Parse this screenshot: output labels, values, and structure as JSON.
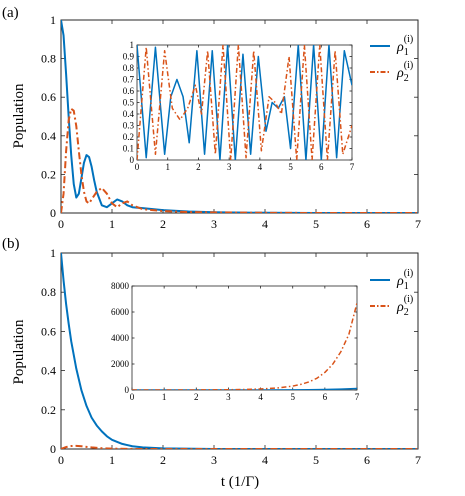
{
  "panel_labels": [
    "(a)",
    "(b)"
  ],
  "x_axis_label": "t (1/Γ)",
  "y_axis_label": "Population",
  "legend": {
    "entries": [
      {
        "symbol": "ρ",
        "sub": "1",
        "sup": "(i)",
        "color": "#0072BD",
        "style": "solid"
      },
      {
        "symbol": "ρ",
        "sub": "2",
        "sup": "(i)",
        "color": "#D95319",
        "style": "dashdot"
      }
    ]
  },
  "chart_data": [
    {
      "id": "a-main",
      "type": "line",
      "xlim": [
        0,
        7
      ],
      "ylim": [
        0,
        1
      ],
      "xticks": [
        0,
        1,
        2,
        3,
        4,
        5,
        6,
        7
      ],
      "yticks": [
        0,
        0.2,
        0.4,
        0.6,
        0.8,
        1
      ],
      "ytick_labels": [
        "0",
        "0.2",
        "0.4",
        "0.6",
        "0.8",
        "1"
      ],
      "xlabel": "",
      "ylabel": "Population",
      "series": [
        {
          "name": "ρ1(i)",
          "color": "#0072BD",
          "style": "solid",
          "x": [
            0,
            0.05,
            0.1,
            0.15,
            0.2,
            0.25,
            0.3,
            0.35,
            0.4,
            0.45,
            0.5,
            0.55,
            0.6,
            0.65,
            0.7,
            0.8,
            0.9,
            1.0,
            1.1,
            1.2,
            1.3,
            1.4,
            1.6,
            1.8,
            2.0,
            2.5,
            3.0,
            4.0,
            5.0,
            6.0,
            7.0
          ],
          "y": [
            1.0,
            0.92,
            0.72,
            0.5,
            0.3,
            0.15,
            0.08,
            0.1,
            0.18,
            0.26,
            0.3,
            0.29,
            0.24,
            0.17,
            0.11,
            0.04,
            0.03,
            0.05,
            0.07,
            0.06,
            0.04,
            0.03,
            0.025,
            0.02,
            0.015,
            0.008,
            0.004,
            0.001,
            0.0,
            0.0,
            0.0
          ]
        },
        {
          "name": "ρ2(i)",
          "color": "#D95319",
          "style": "dashdot",
          "x": [
            0,
            0.05,
            0.1,
            0.15,
            0.2,
            0.25,
            0.3,
            0.35,
            0.4,
            0.45,
            0.5,
            0.55,
            0.6,
            0.7,
            0.8,
            0.9,
            1.0,
            1.1,
            1.2,
            1.3,
            1.4,
            1.6,
            1.8,
            2.0,
            2.5,
            3.0,
            4.0,
            5.0,
            6.0,
            7.0
          ],
          "y": [
            0.0,
            0.1,
            0.32,
            0.48,
            0.54,
            0.53,
            0.45,
            0.32,
            0.2,
            0.11,
            0.06,
            0.05,
            0.07,
            0.11,
            0.13,
            0.1,
            0.05,
            0.03,
            0.05,
            0.06,
            0.04,
            0.02,
            0.015,
            0.01,
            0.005,
            0.003,
            0.001,
            0.0,
            0.0,
            0.0
          ]
        }
      ]
    },
    {
      "id": "a-inset",
      "type": "line",
      "xlim": [
        0,
        7
      ],
      "ylim": [
        0,
        1
      ],
      "xticks": [
        0,
        1,
        2,
        3,
        4,
        5,
        6,
        7
      ],
      "yticks": [
        0,
        0.1,
        0.2,
        0.3,
        0.4,
        0.5,
        0.6,
        0.7,
        0.8,
        0.9,
        1
      ],
      "ytick_labels": [
        "0",
        "0.1",
        "0.2",
        "0.3",
        "0.4",
        "0.5",
        "0.6",
        "0.7",
        "0.8",
        "0.9",
        "1"
      ],
      "series": [
        {
          "name": "ρ1(i)",
          "color": "#0072BD",
          "style": "solid",
          "x": [
            0,
            0.3,
            0.6,
            0.9,
            1.1,
            1.3,
            1.5,
            1.7,
            1.95,
            2.2,
            2.45,
            2.7,
            2.95,
            3.2,
            3.45,
            3.7,
            3.95,
            4.2,
            4.4,
            4.6,
            4.8,
            5.0,
            5.25,
            5.5,
            5.75,
            6.0,
            6.25,
            6.5,
            6.75,
            7.0
          ],
          "y": [
            1.0,
            0.02,
            0.98,
            0.05,
            0.55,
            0.7,
            0.55,
            0.15,
            0.95,
            0.05,
            0.95,
            0.0,
            1.0,
            0.0,
            0.92,
            0.05,
            0.9,
            0.25,
            0.5,
            0.45,
            0.55,
            0.1,
            1.0,
            0.0,
            1.0,
            0.0,
            1.0,
            0.02,
            0.95,
            0.65
          ]
        },
        {
          "name": "ρ2(i)",
          "color": "#D95319",
          "style": "dashdot",
          "x": [
            0,
            0.3,
            0.6,
            0.9,
            1.15,
            1.4,
            1.65,
            1.9,
            2.1,
            2.3,
            2.55,
            2.8,
            3.05,
            3.3,
            3.55,
            3.8,
            4.05,
            4.3,
            4.5,
            4.7,
            4.95,
            5.2,
            5.45,
            5.7,
            5.95,
            6.2,
            6.45,
            6.7,
            7.0
          ],
          "y": [
            0.0,
            0.98,
            0.05,
            0.95,
            0.45,
            0.35,
            0.45,
            0.65,
            0.4,
            0.95,
            0.05,
            1.0,
            0.0,
            1.0,
            0.02,
            0.95,
            0.08,
            0.55,
            0.5,
            0.4,
            0.9,
            0.0,
            1.0,
            0.0,
            1.0,
            0.0,
            0.95,
            0.05,
            0.3
          ]
        }
      ]
    },
    {
      "id": "b-main",
      "type": "line",
      "xlim": [
        0,
        7
      ],
      "ylim": [
        0,
        1
      ],
      "xticks": [
        0,
        1,
        2,
        3,
        4,
        5,
        6,
        7
      ],
      "yticks": [
        0,
        0.2,
        0.4,
        0.6,
        0.8,
        1
      ],
      "ytick_labels": [
        "0",
        "0.2",
        "0.4",
        "0.6",
        "0.8",
        "1"
      ],
      "xlabel": "t (1/Γ)",
      "ylabel": "Population",
      "series": [
        {
          "name": "ρ1(i)",
          "color": "#0072BD",
          "style": "solid",
          "x": [
            0,
            0.05,
            0.1,
            0.15,
            0.2,
            0.3,
            0.4,
            0.5,
            0.6,
            0.7,
            0.8,
            0.9,
            1.0,
            1.2,
            1.4,
            1.6,
            2.0,
            3.0,
            4.0,
            5.0,
            6.0,
            7.0
          ],
          "y": [
            1.0,
            0.86,
            0.74,
            0.64,
            0.55,
            0.41,
            0.3,
            0.22,
            0.16,
            0.12,
            0.09,
            0.065,
            0.047,
            0.026,
            0.014,
            0.008,
            0.003,
            0.0,
            0.0,
            0.0,
            0.0,
            0.0
          ]
        },
        {
          "name": "ρ2(i)",
          "color": "#D95319",
          "style": "dashdot",
          "x": [
            0,
            0.1,
            0.2,
            0.3,
            0.4,
            0.5,
            0.6,
            0.8,
            1.0,
            1.5,
            2.0,
            3.0,
            4.0,
            5.0,
            6.0,
            7.0
          ],
          "y": [
            0.0,
            0.01,
            0.015,
            0.016,
            0.014,
            0.011,
            0.008,
            0.004,
            0.002,
            0.0,
            0.0,
            0.0,
            0.0,
            0.0,
            0.0,
            0.0
          ]
        }
      ]
    },
    {
      "id": "b-inset",
      "type": "line",
      "xlim": [
        0,
        7
      ],
      "ylim": [
        0,
        8000
      ],
      "xticks": [
        0,
        1,
        2,
        3,
        4,
        5,
        6,
        7
      ],
      "yticks": [
        0,
        2000,
        4000,
        6000,
        8000
      ],
      "ytick_labels": [
        "0",
        "2000",
        "4000",
        "6000",
        "8000"
      ],
      "series": [
        {
          "name": "ρ1(i)",
          "color": "#0072BD",
          "style": "solid",
          "x": [
            0,
            1,
            2,
            3,
            4,
            5,
            5.5,
            6,
            6.5,
            7
          ],
          "y": [
            0,
            0,
            0,
            1,
            3,
            10,
            20,
            40,
            70,
            120
          ]
        },
        {
          "name": "ρ2(i)",
          "color": "#D95319",
          "style": "dashdot",
          "x": [
            0,
            1,
            2,
            3,
            3.5,
            4,
            4.5,
            5,
            5.25,
            5.5,
            5.75,
            6,
            6.25,
            6.5,
            6.75,
            7
          ],
          "y": [
            0,
            0,
            5,
            20,
            40,
            80,
            150,
            300,
            430,
            620,
            900,
            1350,
            2000,
            2950,
            4300,
            6700
          ]
        }
      ]
    }
  ]
}
